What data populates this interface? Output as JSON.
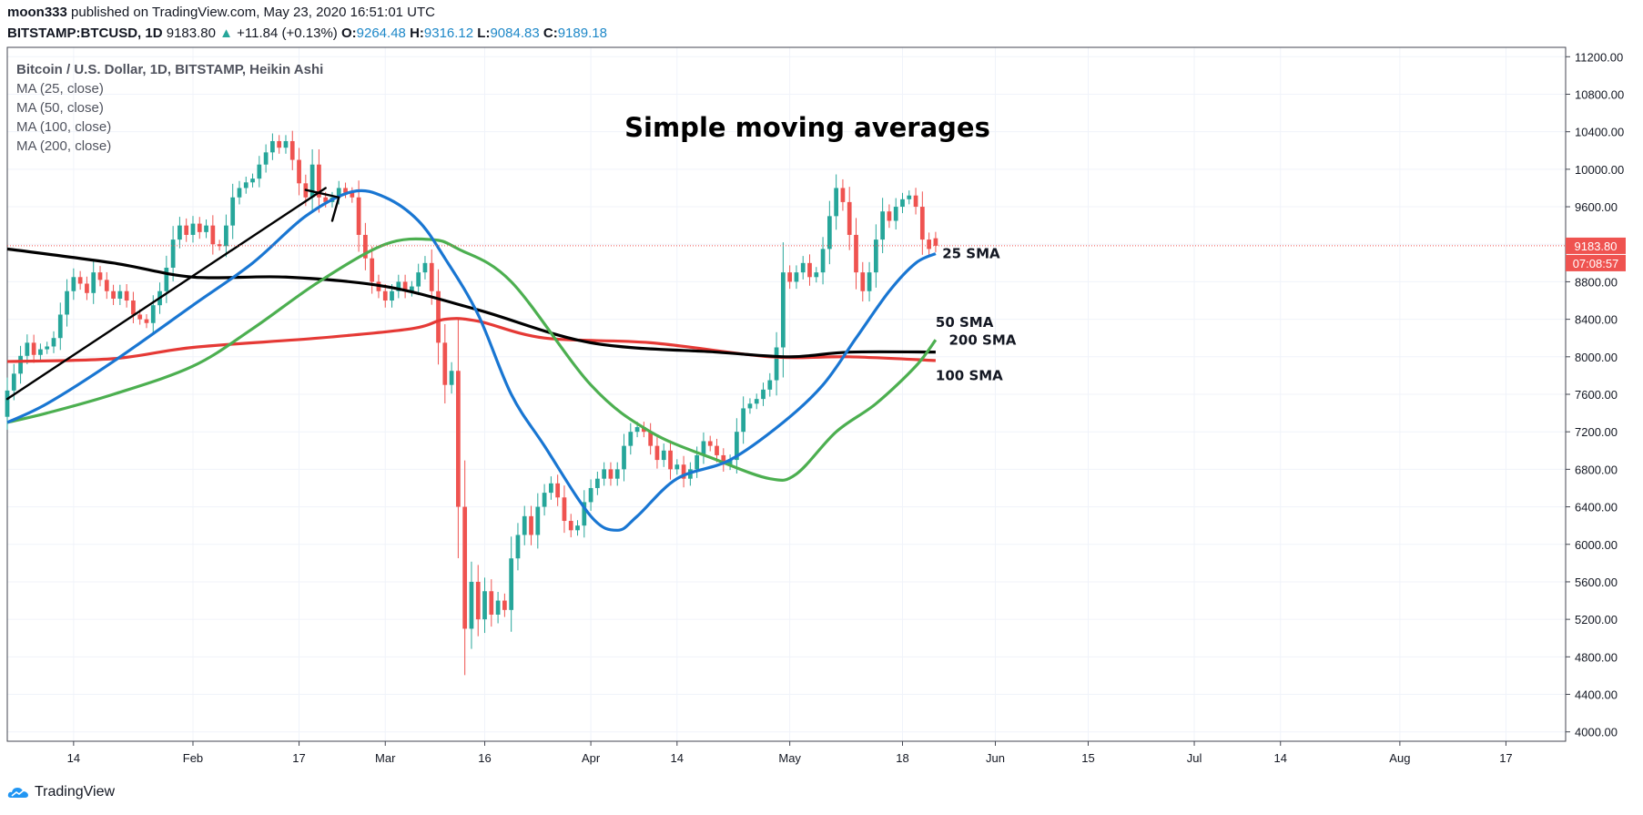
{
  "header": {
    "user": "moon333",
    "published": " published on TradingView.com, May 23, 2020 16:51:01 UTC",
    "symbol": "BITSTAMP:BTCUSD, 1D",
    "price": "9183.80",
    "change_arrow": "▲",
    "change": "+11.84 (+0.13%)",
    "o_label": "O:",
    "o_value": "9264.48",
    "h_label": "H:",
    "h_value": "9316.12",
    "l_label": "L:",
    "l_value": "9084.83",
    "c_label": "C:",
    "c_value": "9189.18"
  },
  "legend": {
    "main": "Bitcoin / U.S. Dollar, 1D, BITSTAMP, Heikin Ashi",
    "items": [
      "MA (25, close)",
      "MA (50, close)",
      "MA (100, close)",
      "MA (200, close)"
    ]
  },
  "footer": {
    "brand": "TradingView"
  },
  "colors": {
    "up": "#26a69a",
    "down": "#ef5350",
    "sma25": "#1976d2",
    "sma50": "#4caf50",
    "sma100": "#e53935",
    "sma200": "#000000",
    "price_tag": "#ef5350"
  },
  "chart_data": {
    "type": "candlestick",
    "title": "Simple moving averages",
    "y_axis": {
      "ticks": [
        4000,
        4400,
        4800,
        5200,
        5600,
        6000,
        6400,
        6800,
        7200,
        7600,
        8000,
        8400,
        8800,
        9200,
        9600,
        10000,
        10400,
        10800,
        11200
      ],
      "tick_labels": [
        "4000.00",
        "4400.00",
        "4800.00",
        "5200.00",
        "5600.00",
        "6000.00",
        "6400.00",
        "6800.00",
        "7200.00",
        "7600.00",
        "8000.00",
        "8400.00",
        "8800.00",
        "9200.00",
        "9600.00",
        "10000.00",
        "10400.00",
        "10800.00",
        "11200.00"
      ],
      "range": [
        3900,
        11300
      ]
    },
    "x_axis": {
      "date_range": [
        "2020-01-04",
        "2020-08-26"
      ],
      "ticks": [
        {
          "date": "2020-01-14",
          "label": "14"
        },
        {
          "date": "2020-02-01",
          "label": "Feb"
        },
        {
          "date": "2020-02-17",
          "label": "17"
        },
        {
          "date": "2020-03-01",
          "label": "Mar"
        },
        {
          "date": "2020-03-16",
          "label": "16"
        },
        {
          "date": "2020-04-01",
          "label": "Apr"
        },
        {
          "date": "2020-04-14",
          "label": "14"
        },
        {
          "date": "2020-05-01",
          "label": "May"
        },
        {
          "date": "2020-05-18",
          "label": "18"
        },
        {
          "date": "2020-06-01",
          "label": "Jun"
        },
        {
          "date": "2020-06-15",
          "label": "15"
        },
        {
          "date": "2020-07-01",
          "label": "Jul"
        },
        {
          "date": "2020-07-14",
          "label": "14"
        },
        {
          "date": "2020-08-01",
          "label": "Aug"
        },
        {
          "date": "2020-08-17",
          "label": "17"
        }
      ]
    },
    "last_price": {
      "value": 9183.8,
      "label": "9183.80",
      "countdown": "07:08:57"
    },
    "candles_note": "Heikin Ashi daily candles, approximate",
    "candles": [
      [
        "2020-01-04",
        7360,
        7640
      ],
      [
        "2020-01-05",
        7640,
        7820
      ],
      [
        "2020-01-06",
        7820,
        8010
      ],
      [
        "2020-01-07",
        8010,
        8150
      ],
      [
        "2020-01-08",
        8150,
        8020
      ],
      [
        "2020-01-09",
        8020,
        8080
      ],
      [
        "2020-01-10",
        8080,
        8110
      ],
      [
        "2020-01-11",
        8110,
        8200
      ],
      [
        "2020-01-12",
        8200,
        8450
      ],
      [
        "2020-01-13",
        8450,
        8700
      ],
      [
        "2020-01-14",
        8700,
        8850
      ],
      [
        "2020-01-15",
        8850,
        8780
      ],
      [
        "2020-01-16",
        8780,
        8680
      ],
      [
        "2020-01-17",
        8680,
        8900
      ],
      [
        "2020-01-18",
        8900,
        8820
      ],
      [
        "2020-01-19",
        8820,
        8700
      ],
      [
        "2020-01-20",
        8700,
        8620
      ],
      [
        "2020-01-21",
        8620,
        8700
      ],
      [
        "2020-01-22",
        8700,
        8600
      ],
      [
        "2020-01-23",
        8600,
        8450
      ],
      [
        "2020-01-24",
        8450,
        8400
      ],
      [
        "2020-01-25",
        8400,
        8360
      ],
      [
        "2020-01-26",
        8360,
        8550
      ],
      [
        "2020-01-27",
        8550,
        8700
      ],
      [
        "2020-01-28",
        8700,
        8950
      ],
      [
        "2020-01-29",
        8950,
        9250
      ],
      [
        "2020-01-30",
        9250,
        9400
      ],
      [
        "2020-01-31",
        9400,
        9300
      ],
      [
        "2020-02-01",
        9300,
        9420
      ],
      [
        "2020-02-02",
        9420,
        9330
      ],
      [
        "2020-02-03",
        9330,
        9400
      ],
      [
        "2020-02-04",
        9400,
        9200
      ],
      [
        "2020-02-05",
        9200,
        9180
      ],
      [
        "2020-02-06",
        9180,
        9400
      ],
      [
        "2020-02-07",
        9400,
        9700
      ],
      [
        "2020-02-08",
        9700,
        9800
      ],
      [
        "2020-02-09",
        9800,
        9860
      ],
      [
        "2020-02-10",
        9860,
        9900
      ],
      [
        "2020-02-11",
        9900,
        10050
      ],
      [
        "2020-02-12",
        10050,
        10180
      ],
      [
        "2020-02-13",
        10180,
        10300
      ],
      [
        "2020-02-14",
        10300,
        10230
      ],
      [
        "2020-02-15",
        10230,
        10300
      ],
      [
        "2020-02-16",
        10300,
        10100
      ],
      [
        "2020-02-17",
        10100,
        9850
      ],
      [
        "2020-02-18",
        9850,
        9700
      ],
      [
        "2020-02-19",
        9700,
        10050
      ],
      [
        "2020-02-20",
        10050,
        9700
      ],
      [
        "2020-02-21",
        9700,
        9650
      ],
      [
        "2020-02-22",
        9650,
        9700
      ],
      [
        "2020-02-23",
        9700,
        9800
      ],
      [
        "2020-02-24",
        9800,
        9750
      ],
      [
        "2020-02-25",
        9750,
        9700
      ],
      [
        "2020-02-26",
        9700,
        9300
      ],
      [
        "2020-02-27",
        9300,
        9050
      ],
      [
        "2020-02-28",
        9050,
        8800
      ],
      [
        "2020-02-29",
        8800,
        8700
      ],
      [
        "2020-03-01",
        8700,
        8600
      ],
      [
        "2020-03-02",
        8600,
        8700
      ],
      [
        "2020-03-03",
        8700,
        8800
      ],
      [
        "2020-03-04",
        8800,
        8700
      ],
      [
        "2020-03-05",
        8700,
        8750
      ],
      [
        "2020-03-06",
        8750,
        8900
      ],
      [
        "2020-03-07",
        8900,
        9000
      ],
      [
        "2020-03-08",
        9000,
        8700
      ],
      [
        "2020-03-09",
        8700,
        8150
      ],
      [
        "2020-03-10",
        8150,
        7700
      ],
      [
        "2020-03-11",
        7700,
        7850
      ],
      [
        "2020-03-12",
        7850,
        6400
      ],
      [
        "2020-03-13",
        6400,
        5100
      ],
      [
        "2020-03-14",
        5100,
        5600
      ],
      [
        "2020-03-15",
        5600,
        5200
      ],
      [
        "2020-03-16",
        5200,
        5500
      ],
      [
        "2020-03-17",
        5500,
        5250
      ],
      [
        "2020-03-18",
        5250,
        5400
      ],
      [
        "2020-03-19",
        5400,
        5300
      ],
      [
        "2020-03-20",
        5300,
        5850
      ],
      [
        "2020-03-21",
        5850,
        6100
      ],
      [
        "2020-03-22",
        6100,
        6300
      ],
      [
        "2020-03-23",
        6300,
        6100
      ],
      [
        "2020-03-24",
        6100,
        6400
      ],
      [
        "2020-03-25",
        6400,
        6550
      ],
      [
        "2020-03-26",
        6550,
        6650
      ],
      [
        "2020-03-27",
        6650,
        6500
      ],
      [
        "2020-03-28",
        6500,
        6250
      ],
      [
        "2020-03-29",
        6250,
        6150
      ],
      [
        "2020-03-30",
        6150,
        6200
      ],
      [
        "2020-03-31",
        6200,
        6450
      ],
      [
        "2020-04-01",
        6450,
        6600
      ],
      [
        "2020-04-02",
        6600,
        6700
      ],
      [
        "2020-04-03",
        6700,
        6800
      ],
      [
        "2020-04-04",
        6800,
        6700
      ],
      [
        "2020-04-05",
        6700,
        6800
      ],
      [
        "2020-04-06",
        6800,
        7050
      ],
      [
        "2020-04-07",
        7050,
        7200
      ],
      [
        "2020-04-08",
        7200,
        7250
      ],
      [
        "2020-04-09",
        7250,
        7200
      ],
      [
        "2020-04-10",
        7200,
        7050
      ],
      [
        "2020-04-11",
        7050,
        6900
      ],
      [
        "2020-04-12",
        6900,
        7000
      ],
      [
        "2020-04-13",
        7000,
        6800
      ],
      [
        "2020-04-14",
        6800,
        6850
      ],
      [
        "2020-04-15",
        6850,
        6700
      ],
      [
        "2020-04-16",
        6700,
        6800
      ],
      [
        "2020-04-17",
        6800,
        6950
      ],
      [
        "2020-04-18",
        6950,
        7100
      ],
      [
        "2020-04-19",
        7100,
        7050
      ],
      [
        "2020-04-20",
        7050,
        6950
      ],
      [
        "2020-04-21",
        6950,
        6850
      ],
      [
        "2020-04-22",
        6850,
        6900
      ],
      [
        "2020-04-23",
        6900,
        7200
      ],
      [
        "2020-04-24",
        7200,
        7450
      ],
      [
        "2020-04-25",
        7450,
        7500
      ],
      [
        "2020-04-26",
        7500,
        7550
      ],
      [
        "2020-04-27",
        7550,
        7650
      ],
      [
        "2020-04-28",
        7650,
        7750
      ],
      [
        "2020-04-29",
        7750,
        8100
      ],
      [
        "2020-04-30",
        8100,
        8900
      ],
      [
        "2020-05-01",
        8900,
        8800
      ],
      [
        "2020-05-02",
        8800,
        8900
      ],
      [
        "2020-05-03",
        8900,
        9000
      ],
      [
        "2020-05-04",
        9000,
        8850
      ],
      [
        "2020-05-05",
        8850,
        8900
      ],
      [
        "2020-05-06",
        8900,
        9150
      ],
      [
        "2020-05-07",
        9150,
        9500
      ],
      [
        "2020-05-08",
        9500,
        9800
      ],
      [
        "2020-05-09",
        9800,
        9650
      ],
      [
        "2020-05-10",
        9650,
        9300
      ],
      [
        "2020-05-11",
        9300,
        8900
      ],
      [
        "2020-05-12",
        8900,
        8700
      ],
      [
        "2020-05-13",
        8700,
        8900
      ],
      [
        "2020-05-14",
        8900,
        9250
      ],
      [
        "2020-05-15",
        9250,
        9550
      ],
      [
        "2020-05-16",
        9550,
        9450
      ],
      [
        "2020-05-17",
        9450,
        9600
      ],
      [
        "2020-05-18",
        9600,
        9680
      ],
      [
        "2020-05-19",
        9680,
        9720
      ],
      [
        "2020-05-20",
        9720,
        9600
      ],
      [
        "2020-05-21",
        9600,
        9250
      ],
      [
        "2020-05-22",
        9250,
        9150
      ],
      [
        "2020-05-23",
        9264,
        9184
      ]
    ],
    "series": [
      {
        "name": "25 SMA",
        "color": "#1976d2",
        "points": [
          [
            "2020-01-04",
            7300
          ],
          [
            "2020-01-10",
            7500
          ],
          [
            "2020-01-20",
            7950
          ],
          [
            "2020-02-01",
            8550
          ],
          [
            "2020-02-10",
            9000
          ],
          [
            "2020-02-18",
            9500
          ],
          [
            "2020-02-25",
            9760
          ],
          [
            "2020-03-01",
            9700
          ],
          [
            "2020-03-06",
            9450
          ],
          [
            "2020-03-10",
            9050
          ],
          [
            "2020-03-15",
            8450
          ],
          [
            "2020-03-20",
            7600
          ],
          [
            "2020-03-25",
            7050
          ],
          [
            "2020-04-01",
            6300
          ],
          [
            "2020-04-05",
            6150
          ],
          [
            "2020-04-08",
            6300
          ],
          [
            "2020-04-14",
            6700
          ],
          [
            "2020-04-22",
            6900
          ],
          [
            "2020-04-30",
            7300
          ],
          [
            "2020-05-06",
            7700
          ],
          [
            "2020-05-11",
            8200
          ],
          [
            "2020-05-16",
            8700
          ],
          [
            "2020-05-20",
            9000
          ],
          [
            "2020-05-23",
            9100
          ]
        ]
      },
      {
        "name": "50 SMA",
        "color": "#4caf50",
        "points": [
          [
            "2020-01-04",
            7300
          ],
          [
            "2020-01-10",
            7400
          ],
          [
            "2020-01-20",
            7600
          ],
          [
            "2020-02-01",
            7900
          ],
          [
            "2020-02-10",
            8300
          ],
          [
            "2020-02-20",
            8800
          ],
          [
            "2020-03-01",
            9200
          ],
          [
            "2020-03-08",
            9250
          ],
          [
            "2020-03-12",
            9150
          ],
          [
            "2020-03-20",
            8800
          ],
          [
            "2020-04-01",
            7700
          ],
          [
            "2020-04-10",
            7200
          ],
          [
            "2020-04-20",
            6900
          ],
          [
            "2020-04-28",
            6700
          ],
          [
            "2020-05-02",
            6750
          ],
          [
            "2020-05-08",
            7200
          ],
          [
            "2020-05-14",
            7500
          ],
          [
            "2020-05-20",
            7900
          ],
          [
            "2020-05-23",
            8180
          ]
        ]
      },
      {
        "name": "100 SMA",
        "color": "#e53935",
        "points": [
          [
            "2020-01-04",
            7950
          ],
          [
            "2020-01-20",
            7980
          ],
          [
            "2020-02-01",
            8100
          ],
          [
            "2020-02-20",
            8200
          ],
          [
            "2020-03-05",
            8300
          ],
          [
            "2020-03-10",
            8400
          ],
          [
            "2020-03-15",
            8380
          ],
          [
            "2020-03-25",
            8200
          ],
          [
            "2020-04-10",
            8150
          ],
          [
            "2020-04-28",
            8000
          ],
          [
            "2020-05-10",
            8000
          ],
          [
            "2020-05-23",
            7960
          ]
        ]
      },
      {
        "name": "200 SMA",
        "color": "#000000",
        "points": [
          [
            "2020-01-04",
            9150
          ],
          [
            "2020-01-20",
            9000
          ],
          [
            "2020-02-01",
            8850
          ],
          [
            "2020-02-15",
            8850
          ],
          [
            "2020-03-01",
            8750
          ],
          [
            "2020-03-15",
            8500
          ],
          [
            "2020-04-01",
            8150
          ],
          [
            "2020-04-20",
            8050
          ],
          [
            "2020-05-01",
            8000
          ],
          [
            "2020-05-10",
            8050
          ],
          [
            "2020-05-23",
            8050
          ]
        ]
      }
    ],
    "trendlines": [
      {
        "from": [
          "2020-01-04",
          7550
        ],
        "to": [
          "2020-02-21",
          9800
        ]
      },
      {
        "from": [
          "2020-02-18",
          9780
        ],
        "to": [
          "2020-02-23",
          9700
        ]
      },
      {
        "from": [
          "2020-02-22",
          9450
        ],
        "to": [
          "2020-02-23",
          9700
        ]
      }
    ],
    "annotations": [
      {
        "text": "25 SMA",
        "date": "2020-05-24",
        "value": 9050
      },
      {
        "text": "50 SMA",
        "date": "2020-05-23",
        "value": 8320
      },
      {
        "text": "200 SMA",
        "date": "2020-05-25",
        "value": 8130
      },
      {
        "text": "100 SMA",
        "date": "2020-05-23",
        "value": 7750
      }
    ]
  }
}
